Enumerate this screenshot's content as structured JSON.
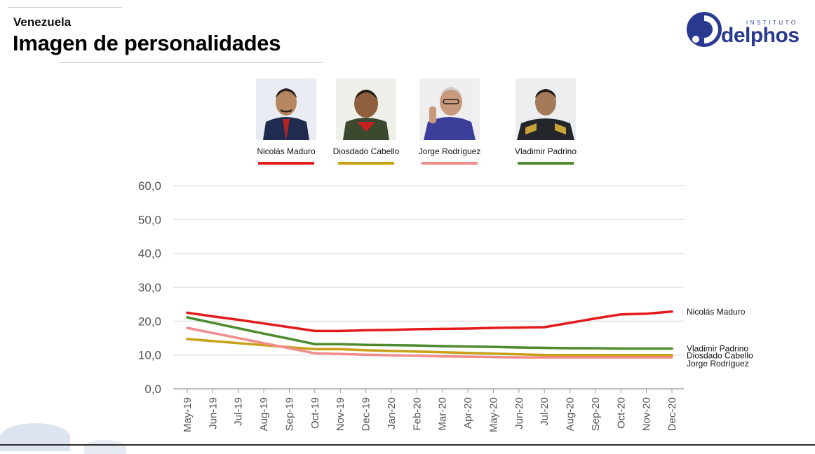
{
  "header": {
    "subtitle": "Venezuela",
    "title": "Imagen de personalidades"
  },
  "logo": {
    "top_text": "INSTITUTO",
    "name": "delphos",
    "color": "#2a3a90"
  },
  "legend": [
    {
      "name": "Nicolás Maduro",
      "color": "#e31b1b"
    },
    {
      "name": "Diosdado Cabello",
      "color": "#c9a018"
    },
    {
      "name": "Jorge Rodríguez",
      "color": "#f28b8b"
    },
    {
      "name": "Vladimir Padrino",
      "color": "#4e8a2e"
    }
  ],
  "chart_data": {
    "type": "line",
    "categories": [
      "May-19",
      "Jun-19",
      "Jul-19",
      "Aug-19",
      "Sep-19",
      "Oct-19",
      "Nov-19",
      "Dec-19",
      "Jan-20",
      "Feb-20",
      "Mar-20",
      "Apr-20",
      "May-20",
      "Jun-20",
      "Jul-20",
      "Aug-20",
      "Sep-20",
      "Oct-20",
      "Nov-20",
      "Dec-20"
    ],
    "ylim": [
      0,
      60
    ],
    "yticks": [
      "0,0",
      "10,0",
      "20,0",
      "30,0",
      "40,0",
      "50,0",
      "60,0"
    ],
    "grid": true,
    "series": [
      {
        "name": "Nicolás Maduro",
        "color": "#e31b1b",
        "end_label": "Nicolás Maduro",
        "values": [
          22.5,
          21.4,
          20.4,
          19.3,
          18.2,
          17.1,
          17.1,
          17.3,
          17.4,
          17.6,
          17.7,
          17.8,
          18.0,
          18.1,
          18.2,
          19.5,
          20.8,
          22.0,
          22.2,
          22.8
        ]
      },
      {
        "name": "Vladimir Padrino",
        "color": "#4e8a2e",
        "end_label": "Vladimir Padrino",
        "values": [
          21.1,
          19.5,
          17.9,
          16.3,
          14.8,
          13.2,
          13.2,
          13.0,
          12.9,
          12.8,
          12.6,
          12.5,
          12.4,
          12.2,
          12.1,
          12.0,
          12.0,
          11.9,
          11.9,
          11.9
        ]
      },
      {
        "name": "Diosdado Cabello",
        "color": "#c9a018",
        "end_label": "Diosdado Cabello",
        "values": [
          14.7,
          14.1,
          13.5,
          12.9,
          12.3,
          11.7,
          11.7,
          11.4,
          11.2,
          11.0,
          10.8,
          10.6,
          10.4,
          10.2,
          10.0,
          10.0,
          10.0,
          10.0,
          10.0,
          10.0
        ]
      },
      {
        "name": "Jorge Rodríguez",
        "color": "#f28b8b",
        "end_label": "Jorge Rodríguez",
        "values": [
          18.0,
          16.5,
          15.0,
          13.5,
          12.0,
          10.5,
          10.3,
          10.1,
          9.9,
          9.8,
          9.6,
          9.5,
          9.4,
          9.3,
          9.3,
          9.3,
          9.3,
          9.3,
          9.3,
          9.3
        ]
      }
    ]
  }
}
